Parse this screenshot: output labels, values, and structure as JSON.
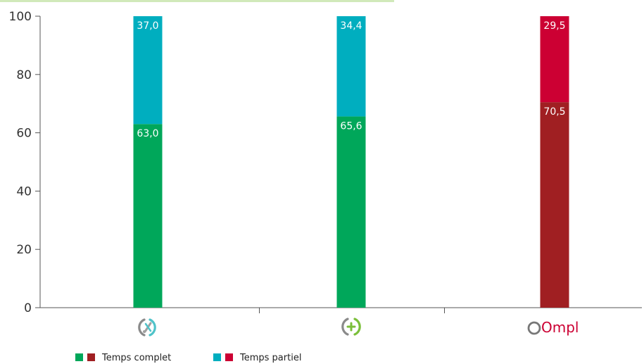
{
  "chart_data": {
    "type": "bar",
    "stacked": true,
    "ylim": [
      0,
      100
    ],
    "yticks": [
      "0",
      "20",
      "40",
      "60",
      "80",
      "100"
    ],
    "categories": [
      {
        "icon": "scissors-circle-icon"
      },
      {
        "icon": "plus-circle-icon"
      },
      {
        "icon": "ompl-logo",
        "logo_text": "Ompl"
      }
    ],
    "series": [
      {
        "name": "Temps complet",
        "values": [
          63.0,
          65.6,
          70.5
        ],
        "labels": [
          "63,0",
          "65,6",
          "70,5"
        ],
        "colors": [
          "#00a75a",
          "#00a75a",
          "#a01f22"
        ]
      },
      {
        "name": "Temps partiel",
        "values": [
          37.0,
          34.4,
          29.5
        ],
        "labels": [
          "37,0",
          "34,4",
          "29,5"
        ],
        "colors": [
          "#00aebf",
          "#00aebf",
          "#cc0033"
        ]
      }
    ],
    "legend": {
      "position": "bottom-left",
      "items": [
        {
          "label": "Temps complet",
          "swatches": [
            "#00a75a",
            "#a01f22"
          ]
        },
        {
          "label": "Temps partiel",
          "swatches": [
            "#00aebf",
            "#cc0033"
          ]
        }
      ]
    },
    "grid": false,
    "title": "",
    "xlabel": "",
    "ylabel": ""
  }
}
